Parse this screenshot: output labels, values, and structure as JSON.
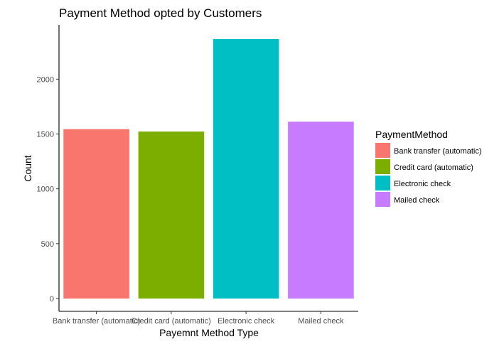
{
  "chart_data": {
    "type": "bar",
    "title": "Payment Method opted by Customers",
    "xlabel": "Payemnt Method Type",
    "ylabel": "Count",
    "categories": [
      "Bank transfer (automatic)",
      "Credit card (automatic)",
      "Electronic check",
      "Mailed check"
    ],
    "values": [
      1544,
      1522,
      2365,
      1612
    ],
    "colors": [
      "#F8766D",
      "#7CAE00",
      "#00BFC4",
      "#C77CFF"
    ],
    "y_ticks": [
      0,
      500,
      1000,
      1500,
      2000
    ],
    "ylim": [
      0,
      2365
    ],
    "grid": false,
    "legend": {
      "title": "PaymentMethod",
      "position": "right",
      "items": [
        "Bank transfer (automatic)",
        "Credit card (automatic)",
        "Electronic check",
        "Mailed check"
      ]
    }
  }
}
